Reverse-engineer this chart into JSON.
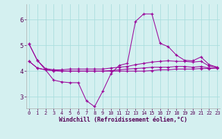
{
  "title": "",
  "xlabel": "Windchill (Refroidissement éolien,°C)",
  "background_color": "#d4f0f0",
  "line_color": "#990099",
  "grid_color": "#aadddd",
  "x_ticks": [
    0,
    1,
    2,
    3,
    4,
    5,
    6,
    7,
    8,
    9,
    10,
    11,
    12,
    13,
    14,
    15,
    16,
    17,
    18,
    19,
    20,
    21,
    22,
    23
  ],
  "y_ticks": [
    3,
    4,
    5,
    6
  ],
  "ylim": [
    2.55,
    6.6
  ],
  "xlim": [
    -0.3,
    23.3
  ],
  "series": [
    [
      5.05,
      4.42,
      4.05,
      3.65,
      3.58,
      3.55,
      3.55,
      2.85,
      2.62,
      3.22,
      3.9,
      4.22,
      4.3,
      5.93,
      6.22,
      6.22,
      5.08,
      4.95,
      4.62,
      4.42,
      4.4,
      4.55,
      4.25,
      4.15
    ],
    [
      4.38,
      4.12,
      4.05,
      4.02,
      4.0,
      4.0,
      4.0,
      4.0,
      4.0,
      4.0,
      4.02,
      4.05,
      4.08,
      4.1,
      4.12,
      4.15,
      4.15,
      4.15,
      4.18,
      4.18,
      4.15,
      4.18,
      4.12,
      4.12
    ],
    [
      4.38,
      4.12,
      4.05,
      4.02,
      4.0,
      4.0,
      4.0,
      4.0,
      4.0,
      4.0,
      4.0,
      4.0,
      4.0,
      4.0,
      4.0,
      4.02,
      4.05,
      4.05,
      4.08,
      4.08,
      4.08,
      4.1,
      4.1,
      4.12
    ],
    [
      5.05,
      4.42,
      4.1,
      4.05,
      4.05,
      4.08,
      4.08,
      4.08,
      4.08,
      4.08,
      4.12,
      4.15,
      4.18,
      4.25,
      4.3,
      4.35,
      4.38,
      4.4,
      4.38,
      4.38,
      4.35,
      4.38,
      4.2,
      4.15
    ]
  ],
  "xlabel_fontsize": 6.0,
  "xtick_fontsize": 5.0,
  "ytick_fontsize": 6.5
}
